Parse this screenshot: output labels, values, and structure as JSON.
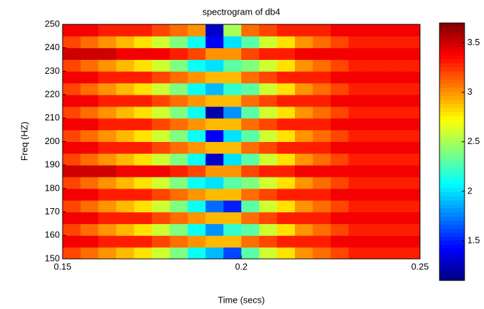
{
  "chart_data": {
    "type": "heatmap",
    "title": "spectrogram of db4",
    "x_label": "Time (secs)",
    "y_label": "Freq (HZ)",
    "colormap": "jet",
    "xbins": [
      0.15,
      0.155,
      0.16,
      0.165,
      0.17,
      0.175,
      0.18,
      0.185,
      0.19,
      0.195,
      0.2,
      0.205,
      0.21,
      0.215,
      0.22,
      0.225,
      0.23,
      0.235,
      0.24,
      0.245,
      0.25
    ],
    "ybins": [
      150,
      155,
      160,
      165,
      170,
      175,
      180,
      185,
      190,
      195,
      200,
      205,
      210,
      215,
      220,
      225,
      230,
      235,
      240,
      245,
      250
    ],
    "values": [
      [
        3.2,
        3.1,
        3.0,
        2.9,
        2.8,
        2.6,
        2.4,
        2.1,
        1.9,
        1.6,
        2.3,
        2.6,
        2.8,
        3.0,
        3.1,
        3.2,
        3.3,
        3.3,
        3.3,
        3.3
      ],
      [
        3.4,
        3.4,
        3.3,
        3.3,
        3.3,
        3.2,
        3.1,
        3.0,
        2.9,
        2.9,
        3.1,
        3.2,
        3.3,
        3.3,
        3.3,
        3.4,
        3.4,
        3.4,
        3.4,
        3.4
      ],
      [
        3.2,
        3.1,
        3.0,
        2.9,
        2.8,
        2.6,
        2.4,
        2.1,
        1.8,
        2.2,
        2.3,
        2.6,
        2.8,
        3.0,
        3.1,
        3.2,
        3.3,
        3.3,
        3.3,
        3.3
      ],
      [
        3.4,
        3.4,
        3.3,
        3.3,
        3.3,
        3.2,
        3.1,
        3.0,
        2.9,
        2.9,
        3.1,
        3.2,
        3.3,
        3.3,
        3.3,
        3.4,
        3.4,
        3.4,
        3.4,
        3.4
      ],
      [
        3.2,
        3.1,
        3.0,
        2.9,
        2.8,
        2.6,
        2.4,
        2.1,
        1.7,
        1.5,
        2.3,
        2.6,
        2.8,
        3.0,
        3.1,
        3.2,
        3.3,
        3.3,
        3.3,
        3.3
      ],
      [
        3.4,
        3.4,
        3.3,
        3.3,
        3.3,
        3.2,
        3.1,
        3.0,
        2.9,
        2.9,
        3.1,
        3.2,
        3.3,
        3.3,
        3.3,
        3.4,
        3.4,
        3.4,
        3.4,
        3.4
      ],
      [
        3.2,
        3.1,
        3.0,
        2.9,
        2.8,
        2.6,
        2.4,
        2.1,
        2.0,
        2.3,
        2.4,
        2.6,
        2.8,
        3.0,
        3.1,
        3.2,
        3.3,
        3.3,
        3.3,
        3.3
      ],
      [
        3.5,
        3.5,
        3.5,
        3.4,
        3.4,
        3.4,
        3.3,
        3.2,
        3.0,
        3.0,
        3.2,
        3.3,
        3.3,
        3.4,
        3.4,
        3.4,
        3.4,
        3.4,
        3.4,
        3.4
      ],
      [
        3.2,
        3.1,
        3.0,
        2.9,
        2.8,
        2.6,
        2.4,
        2.1,
        1.3,
        2.0,
        2.3,
        2.6,
        2.8,
        3.0,
        3.1,
        3.2,
        3.3,
        3.3,
        3.3,
        3.3
      ],
      [
        3.4,
        3.4,
        3.3,
        3.3,
        3.3,
        3.2,
        3.1,
        3.0,
        2.9,
        2.9,
        3.1,
        3.2,
        3.3,
        3.3,
        3.3,
        3.4,
        3.4,
        3.4,
        3.4,
        3.4
      ],
      [
        3.2,
        3.1,
        3.0,
        2.9,
        2.8,
        2.6,
        2.4,
        2.1,
        1.4,
        2.0,
        2.3,
        2.6,
        2.8,
        3.0,
        3.1,
        3.2,
        3.3,
        3.3,
        3.3,
        3.3
      ],
      [
        3.4,
        3.4,
        3.3,
        3.3,
        3.3,
        3.2,
        3.1,
        3.0,
        2.9,
        2.9,
        3.1,
        3.2,
        3.3,
        3.3,
        3.3,
        3.4,
        3.4,
        3.4,
        3.4,
        3.4
      ],
      [
        3.2,
        3.1,
        3.0,
        2.9,
        2.8,
        2.6,
        2.4,
        2.1,
        1.2,
        1.8,
        2.3,
        2.6,
        2.8,
        3.0,
        3.1,
        3.2,
        3.3,
        3.3,
        3.3,
        3.3
      ],
      [
        3.4,
        3.4,
        3.3,
        3.3,
        3.3,
        3.2,
        3.1,
        3.0,
        2.9,
        2.9,
        3.1,
        3.2,
        3.3,
        3.3,
        3.3,
        3.4,
        3.4,
        3.4,
        3.4,
        3.4
      ],
      [
        3.2,
        3.1,
        3.0,
        2.9,
        2.8,
        2.6,
        2.4,
        2.1,
        1.9,
        2.2,
        2.3,
        2.6,
        2.8,
        3.0,
        3.1,
        3.2,
        3.3,
        3.3,
        3.3,
        3.3
      ],
      [
        3.4,
        3.4,
        3.3,
        3.3,
        3.3,
        3.2,
        3.1,
        3.0,
        2.9,
        2.9,
        3.1,
        3.2,
        3.3,
        3.3,
        3.3,
        3.4,
        3.4,
        3.4,
        3.4,
        3.4
      ],
      [
        3.2,
        3.1,
        3.0,
        2.9,
        2.8,
        2.6,
        2.4,
        2.1,
        2.0,
        2.3,
        2.4,
        2.6,
        2.8,
        3.0,
        3.1,
        3.2,
        3.3,
        3.3,
        3.3,
        3.3
      ],
      [
        3.5,
        3.5,
        3.5,
        3.4,
        3.4,
        3.4,
        3.3,
        3.2,
        3.0,
        3.0,
        3.2,
        3.3,
        3.3,
        3.4,
        3.4,
        3.4,
        3.4,
        3.4,
        3.4,
        3.4
      ],
      [
        3.2,
        3.1,
        3.0,
        2.9,
        2.8,
        2.6,
        2.4,
        2.1,
        1.4,
        2.0,
        2.3,
        2.6,
        2.8,
        3.0,
        3.1,
        3.2,
        3.3,
        3.3,
        3.3,
        3.3
      ],
      [
        3.4,
        3.4,
        3.3,
        3.3,
        3.3,
        3.2,
        3.1,
        3.0,
        1.3,
        2.5,
        3.1,
        3.2,
        3.3,
        3.3,
        3.3,
        3.4,
        3.4,
        3.4,
        3.4,
        3.4
      ]
    ],
    "xlim": [
      0.15,
      0.25
    ],
    "xticks": [
      0.15,
      0.2,
      0.25
    ],
    "ylim": [
      150,
      250
    ],
    "yticks": [
      150,
      160,
      170,
      180,
      190,
      200,
      210,
      220,
      230,
      240,
      250
    ],
    "clim": [
      1.1,
      3.7
    ],
    "cticks": [
      1.5,
      2,
      2.5,
      3,
      3.5
    ]
  }
}
